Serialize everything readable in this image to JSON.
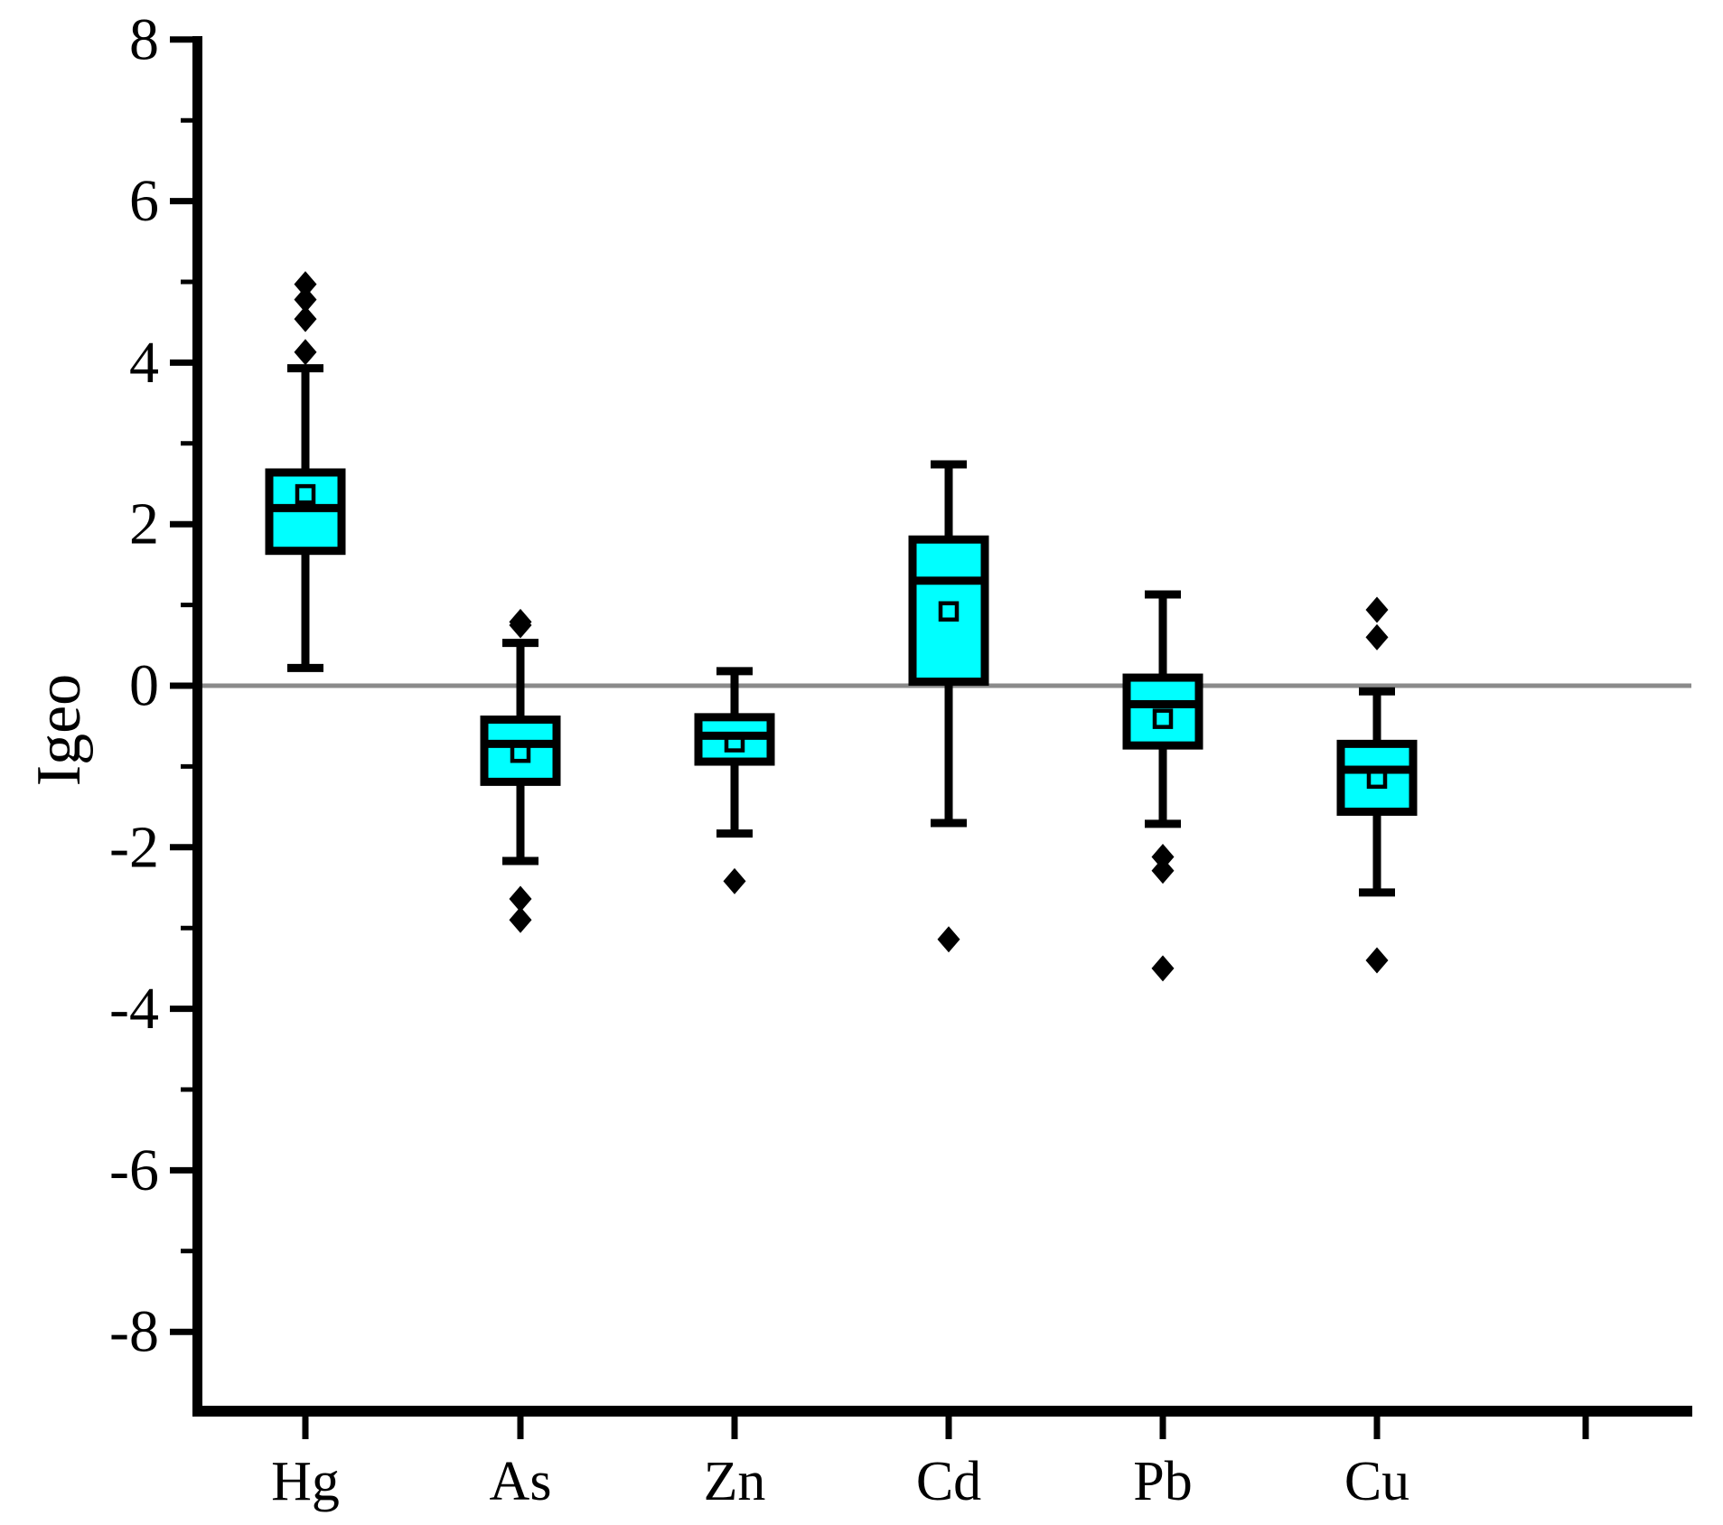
{
  "chart_data": {
    "type": "box",
    "title": "",
    "ylabel": "Igeo",
    "xlabel": "",
    "grid": "off",
    "legend": "none",
    "ylim": [
      -9,
      8.15
    ],
    "y_major_ticks": [
      8,
      6,
      4,
      2,
      0,
      -2,
      -4,
      -6,
      -8
    ],
    "y_major_tick_labels": [
      "8",
      "6",
      "4",
      "2",
      "0",
      "-2",
      "-4",
      "-6",
      "-8"
    ],
    "y_minor_ticks": [
      7,
      5,
      3,
      1,
      -1,
      -3,
      -5,
      -7
    ],
    "reference_line_y": 0,
    "categories": [
      "Hg",
      "As",
      "Zn",
      "Cd",
      "Pb",
      "Cu"
    ],
    "series": [
      {
        "name": "Hg",
        "q1": 1.67,
        "median": 2.2,
        "q3": 2.64,
        "mean": 2.37,
        "whisker_low": 0.22,
        "whisker_high": 3.93,
        "outliers": [
          4.13,
          4.54,
          4.78,
          4.97
        ]
      },
      {
        "name": "As",
        "q1": -1.19,
        "median": -0.72,
        "q3": -0.42,
        "mean": -0.83,
        "whisker_low": -2.17,
        "whisker_high": 0.53,
        "outliers": [
          0.79,
          0.75,
          -2.64,
          -2.9
        ]
      },
      {
        "name": "Zn",
        "q1": -0.94,
        "median": -0.62,
        "q3": -0.39,
        "mean": -0.7,
        "whisker_low": -1.83,
        "whisker_high": 0.18,
        "outliers": [
          -2.42
        ]
      },
      {
        "name": "Cd",
        "q1": 0.05,
        "median": 1.3,
        "q3": 1.81,
        "mean": 0.92,
        "whisker_low": -1.7,
        "whisker_high": 2.74,
        "outliers": [
          -3.14
        ]
      },
      {
        "name": "Pb",
        "q1": -0.74,
        "median": -0.23,
        "q3": 0.1,
        "mean": -0.41,
        "whisker_low": -1.71,
        "whisker_high": 1.13,
        "outliers": [
          -2.12,
          -2.29,
          -3.5
        ]
      },
      {
        "name": "Cu",
        "q1": -1.56,
        "median": -1.04,
        "q3": -0.72,
        "mean": -1.15,
        "whisker_low": -2.56,
        "whisker_high": -0.07,
        "outliers": [
          0.94,
          0.6,
          -3.4
        ]
      }
    ],
    "colors": {
      "box_fill": "#00FFFF",
      "box_stroke": "#000000",
      "axis": "#000000",
      "zero_line": "#8A8A8A",
      "outlier": "#000000",
      "background": "#FFFFFF"
    }
  }
}
